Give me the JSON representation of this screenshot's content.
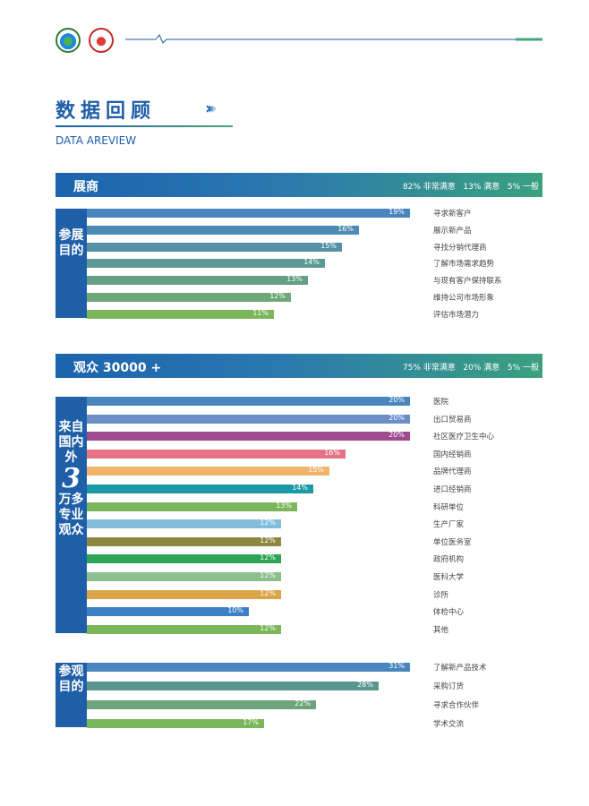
{
  "header": {
    "logo_left": "logo-left-icon",
    "logo_right": "logo-right-icon",
    "accent_line_color": "#1e5fa8",
    "accent_tail_color": "#4aa37a"
  },
  "section": {
    "title": "数据回顾",
    "chevrons": [
      "›",
      "›",
      "›"
    ],
    "subtitle": "DATA AREVIEW"
  },
  "exhibitors": {
    "band_title": "展商",
    "satisfaction": "82% 非常满意   13% 满意   5% 一般",
    "side_label": "参展目的"
  },
  "visitors": {
    "band_title": "观众 30000 +",
    "satisfaction": "75% 非常满意   20% 满意   5% 一般",
    "side_label_top": "来自国内外",
    "side_label_big": "3",
    "side_label_bottom": "万多专业观众",
    "purpose_label": "参观目的"
  },
  "chart_data": [
    {
      "type": "bar",
      "orientation": "horizontal",
      "categories": [
        "寻求新客户",
        "展示新产品",
        "寻找分销代理商",
        "了解市场需求趋势",
        "与现有客户保持联系",
        "维持公司市场形象",
        "评估市场潜力"
      ],
      "values": [
        19,
        16,
        15,
        14,
        13,
        12,
        11
      ],
      "labels": [
        "19%",
        "16%",
        "15%",
        "14%",
        "13%",
        "12%",
        "11%"
      ],
      "colors": [
        "#4a86be",
        "#4d8cb2",
        "#5392a6",
        "#5b9a96",
        "#649f86",
        "#6fa876",
        "#7cb65b"
      ]
    },
    {
      "type": "bar",
      "orientation": "horizontal",
      "categories": [
        "医院",
        "出口贸易商",
        "社区医疗卫生中心",
        "国内经销商",
        "品牌代理商",
        "进口经销商",
        "科研单位",
        "生产厂家",
        "单位医务室",
        "政府机构",
        "医科大学",
        "诊所",
        "体检中心",
        "其他"
      ],
      "values": [
        20,
        20,
        20,
        16,
        15,
        14,
        13,
        12,
        12,
        12,
        12,
        12,
        10,
        12
      ],
      "labels": [
        "20%",
        "20%",
        "20%",
        "16%",
        "15%",
        "14%",
        "13%",
        "12%",
        "12%",
        "12%",
        "12%",
        "12%",
        "10%",
        "12%"
      ],
      "colors": [
        "#4a86be",
        "#6b8ec6",
        "#9e4b8f",
        "#e57385",
        "#f2b36c",
        "#1a9aa5",
        "#7cb65b",
        "#82bedb",
        "#8e8740",
        "#2ea457",
        "#8cbf8e",
        "#dba548",
        "#3b7fc4",
        "#7cb65b"
      ]
    },
    {
      "type": "bar",
      "orientation": "horizontal",
      "categories": [
        "了解新产品技术",
        "采购订货",
        "寻求合作伙伴",
        "学术交流"
      ],
      "values": [
        31,
        28,
        22,
        17
      ],
      "labels": [
        "31%",
        "28%",
        "22%",
        "17%"
      ],
      "colors": [
        "#4a86be",
        "#5a9690",
        "#6ea47c",
        "#7cb65b"
      ]
    }
  ]
}
